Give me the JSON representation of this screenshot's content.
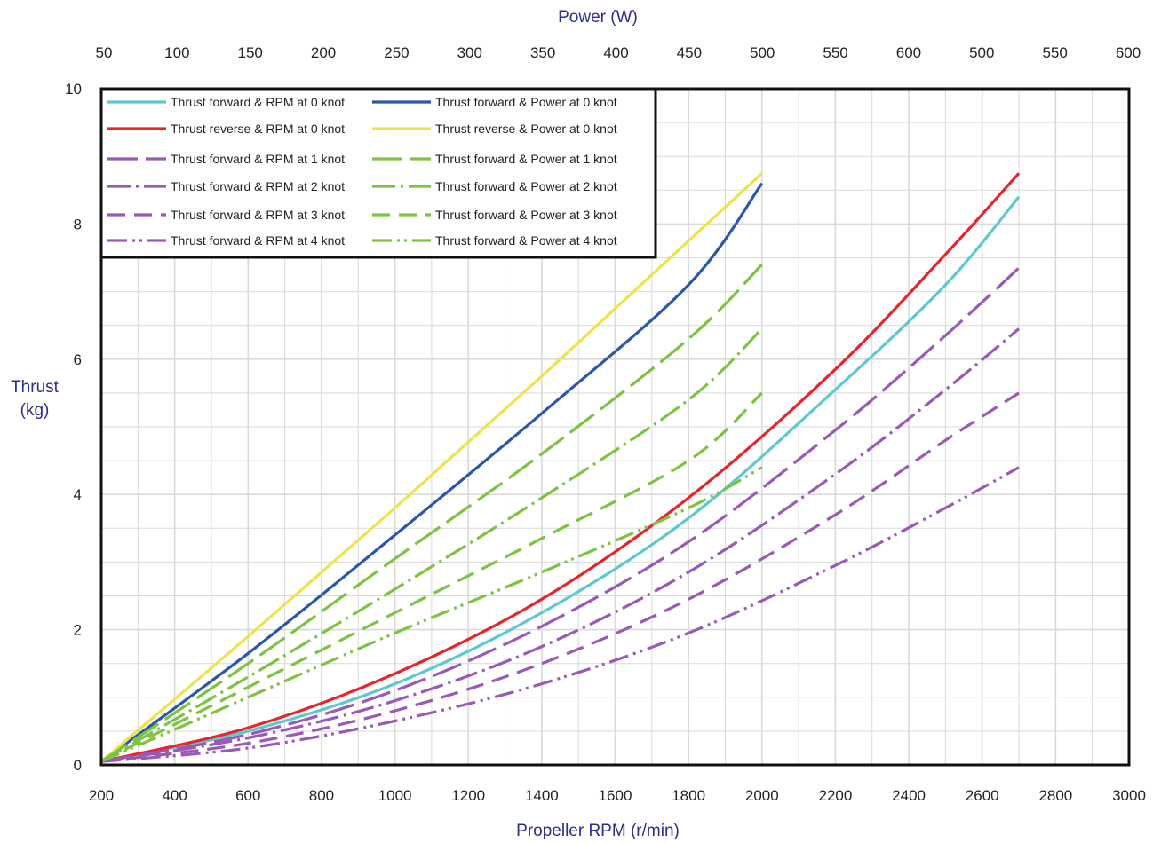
{
  "chart_data": {
    "type": "line",
    "grid": true,
    "legend_placement": "top-left",
    "bottom_axis": {
      "label": "Propeller RPM (r/min)",
      "range": [
        200,
        3000
      ],
      "ticks": [
        200,
        400,
        600,
        800,
        1000,
        1200,
        1400,
        1600,
        1800,
        2000,
        2200,
        2400,
        2600,
        2800,
        3000
      ]
    },
    "top_axis": {
      "label": "Power (W)",
      "tick_labels": [
        "50",
        "100",
        "150",
        "200",
        "250",
        "300",
        "350",
        "400",
        "450",
        "500",
        "550",
        "600",
        "500",
        "550",
        "600"
      ]
    },
    "y_axis": {
      "label_line1": "Thrust",
      "label_line2": "(kg)",
      "range": [
        0,
        10
      ],
      "ticks": [
        0,
        2,
        4,
        6,
        8,
        10
      ]
    },
    "series": [
      {
        "name": "Thrust forward &  RPM at 0 knot",
        "color": "#5ec8d0",
        "dash": "solid",
        "x": [
          200,
          600,
          1000,
          1400,
          1800,
          2200,
          2500,
          2700
        ],
        "y": [
          0.05,
          0.5,
          1.2,
          2.25,
          3.65,
          5.55,
          7.1,
          8.4
        ]
      },
      {
        "name": "Thrust forward & Power at 0 knot",
        "color": "#2a58a8",
        "dash": "solid",
        "x": [
          200,
          600,
          1000,
          1400,
          1800,
          2000
        ],
        "y": [
          0.05,
          1.65,
          3.4,
          5.2,
          7.1,
          8.6
        ]
      },
      {
        "name": "Thrust reverse  &  RPM at 0 knot",
        "color": "#e8242a",
        "dash": "solid",
        "x": [
          200,
          600,
          1000,
          1400,
          1800,
          2200,
          2500,
          2700
        ],
        "y": [
          0.05,
          0.55,
          1.35,
          2.45,
          3.95,
          5.85,
          7.55,
          8.75
        ]
      },
      {
        "name": "Thrust reverse & Power at 0 knot",
        "color": "#ece44a",
        "dash": "solid",
        "x": [
          200,
          600,
          1000,
          1400,
          1800,
          2000
        ],
        "y": [
          0.05,
          1.9,
          3.8,
          5.75,
          7.75,
          8.75
        ]
      },
      {
        "name": "Thrust forward &  RPM at 1 knot",
        "color": "#9b59b6",
        "dash": "longdash",
        "x": [
          200,
          600,
          1000,
          1400,
          1800,
          2200,
          2500,
          2700
        ],
        "y": [
          0.05,
          0.45,
          1.1,
          2.05,
          3.3,
          4.95,
          6.35,
          7.35
        ]
      },
      {
        "name": "Thrust forward & Power at 1 knot",
        "color": "#7ec241",
        "dash": "longdash",
        "x": [
          200,
          600,
          1000,
          1400,
          1800,
          2000
        ],
        "y": [
          0.05,
          1.5,
          3.05,
          4.6,
          6.3,
          7.4
        ]
      },
      {
        "name": "Thrust forward &  RPM at 2 knot",
        "color": "#9b59b6",
        "dash": "dashdot",
        "x": [
          200,
          600,
          1000,
          1400,
          1800,
          2200,
          2500,
          2700
        ],
        "y": [
          0.05,
          0.4,
          0.95,
          1.75,
          2.85,
          4.3,
          5.55,
          6.45
        ]
      },
      {
        "name": "Thrust forward & Power at 2 knot",
        "color": "#7ec241",
        "dash": "dashdot",
        "x": [
          200,
          600,
          1000,
          1400,
          1800,
          2000
        ],
        "y": [
          0.05,
          1.3,
          2.6,
          3.95,
          5.4,
          6.45
        ]
      },
      {
        "name": "Thrust forward &  RPM at 3 knot",
        "color": "#9b59b6",
        "dash": "dash",
        "x": [
          200,
          600,
          1000,
          1400,
          1800,
          2200,
          2500,
          2700
        ],
        "y": [
          0.05,
          0.32,
          0.8,
          1.5,
          2.45,
          3.7,
          4.8,
          5.5
        ]
      },
      {
        "name": "Thrust forward & Power at 3 knot",
        "color": "#7ec241",
        "dash": "dash",
        "x": [
          200,
          600,
          1000,
          1400,
          1800,
          2000
        ],
        "y": [
          0.05,
          1.15,
          2.25,
          3.35,
          4.5,
          5.5
        ]
      },
      {
        "name": "Thrust forward &  RPM at 4 knot",
        "color": "#9b59b6",
        "dash": "dashdotdot",
        "x": [
          200,
          600,
          1000,
          1400,
          1800,
          2200,
          2500,
          2700
        ],
        "y": [
          0.05,
          0.25,
          0.65,
          1.2,
          1.95,
          2.95,
          3.8,
          4.4
        ]
      },
      {
        "name": "Thrust forward & Power at 4 knot",
        "color": "#7ec241",
        "dash": "dashdotdot",
        "x": [
          200,
          600,
          1000,
          1400,
          1800,
          2000
        ],
        "y": [
          0.05,
          1.0,
          1.95,
          2.85,
          3.8,
          4.4
        ]
      }
    ]
  }
}
